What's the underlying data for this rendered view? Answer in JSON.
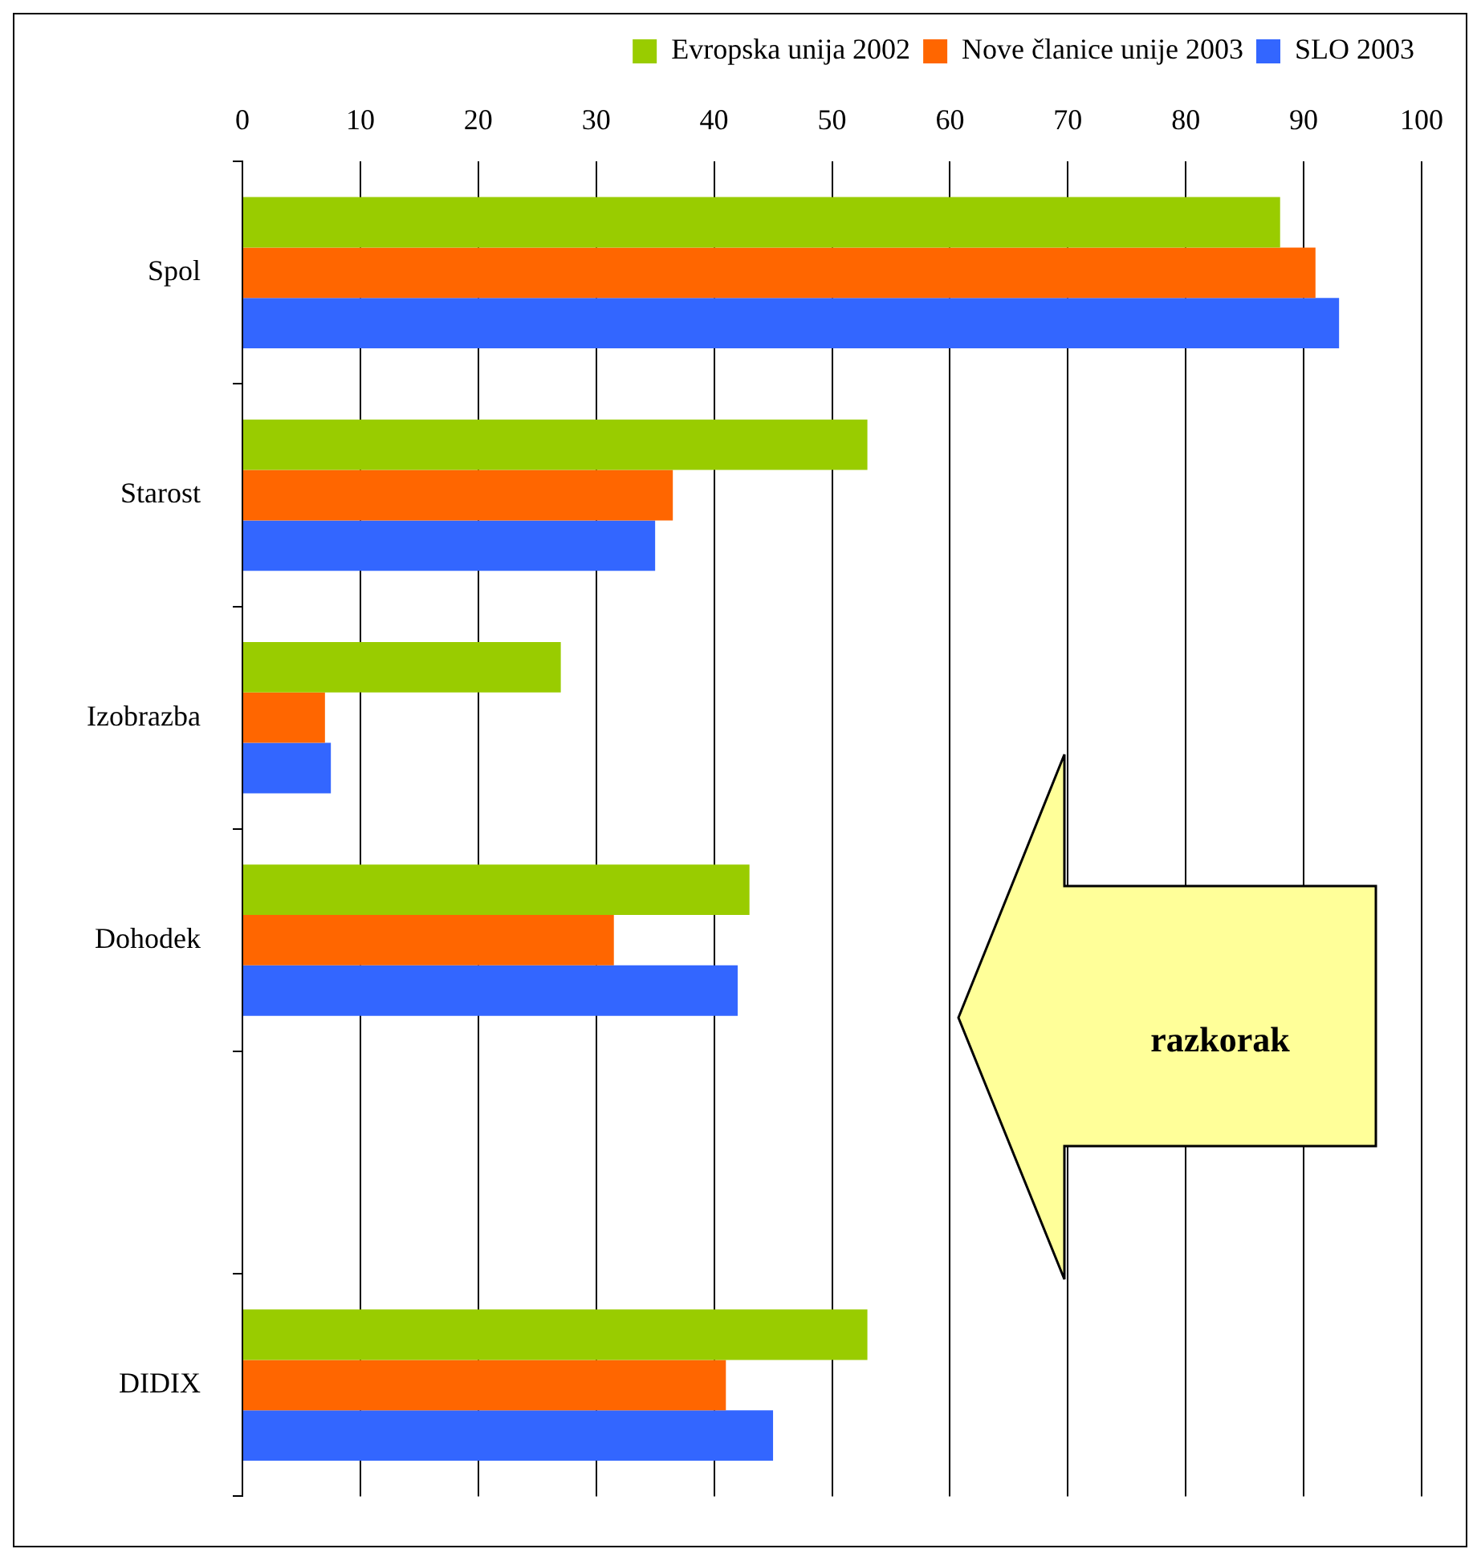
{
  "chart_data": {
    "type": "bar",
    "orientation": "horizontal",
    "categories": [
      "Spol",
      "Starost",
      "Izobrazba",
      "Dohodek",
      null,
      "DIDIX"
    ],
    "series": [
      {
        "name": "Evropska unija 2002",
        "color": "#99cc00",
        "values": [
          88,
          53,
          27,
          43,
          null,
          53
        ]
      },
      {
        "name": "Nove članice unije 2003",
        "color": "#ff6600",
        "values": [
          91,
          36.5,
          7,
          31.5,
          null,
          41
        ]
      },
      {
        "name": "SLO 2003",
        "color": "#3366ff",
        "values": [
          93,
          35,
          7.5,
          42,
          null,
          45
        ]
      }
    ],
    "xlim": [
      0,
      100
    ],
    "xticks": [
      0,
      10,
      20,
      30,
      40,
      50,
      60,
      70,
      80,
      90,
      100
    ],
    "grid": "x",
    "legend": "top",
    "annotations": [
      "razkorak"
    ]
  }
}
